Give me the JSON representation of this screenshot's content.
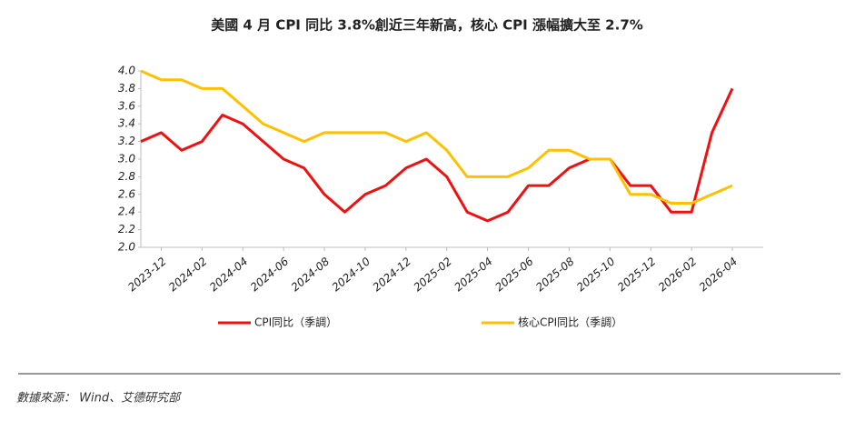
{
  "chart_data": {
    "type": "line",
    "title": "美國 4 月 CPI 同比 3.8%創近三年新高，核心 CPI 漲幅擴大至 2.7%",
    "categories": [
      null,
      "2023-12",
      null,
      "2024-02",
      null,
      "2024-04",
      null,
      "2024-06",
      null,
      "2024-08",
      null,
      "2024-10",
      null,
      "2024-12",
      null,
      "2025-02",
      null,
      "2025-04",
      null,
      "2025-06",
      null,
      "2025-08",
      null,
      "2025-10",
      null,
      "2025-12",
      null,
      "2026-02",
      null,
      "2026-04"
    ],
    "series": [
      {
        "name": "CPI同比（季調）",
        "color": "#ee1111",
        "values": [
          3.2,
          3.3,
          3.1,
          3.2,
          3.5,
          3.4,
          3.2,
          3.0,
          2.9,
          2.6,
          2.4,
          2.6,
          2.7,
          2.9,
          3.0,
          2.8,
          2.4,
          2.3,
          2.4,
          2.7,
          2.7,
          2.9,
          3.0,
          3.0,
          2.7,
          2.7,
          2.4,
          2.4,
          3.3,
          3.8
        ]
      },
      {
        "name": "核心CPI同比（季調）",
        "color": "#ffc000",
        "values": [
          4.0,
          3.9,
          3.9,
          3.8,
          3.8,
          3.6,
          3.4,
          3.3,
          3.2,
          3.3,
          3.3,
          3.3,
          3.3,
          3.2,
          3.3,
          3.1,
          2.8,
          2.8,
          2.8,
          2.9,
          3.1,
          3.1,
          3.0,
          3.0,
          2.6,
          2.6,
          2.5,
          2.5,
          2.6,
          2.7
        ]
      }
    ],
    "ylim": [
      2.0,
      4.0
    ],
    "yticks": [
      {
        "value": 2,
        "label": "2.0"
      },
      2.2,
      2.4,
      2.6,
      2.8,
      {
        "value": 3,
        "label": "3.0"
      },
      3.2,
      3.4,
      3.6,
      3.8,
      {
        "value": 4,
        "label": "4.0"
      }
    ],
    "source": "數據來源： Wind、艾德研究部"
  }
}
